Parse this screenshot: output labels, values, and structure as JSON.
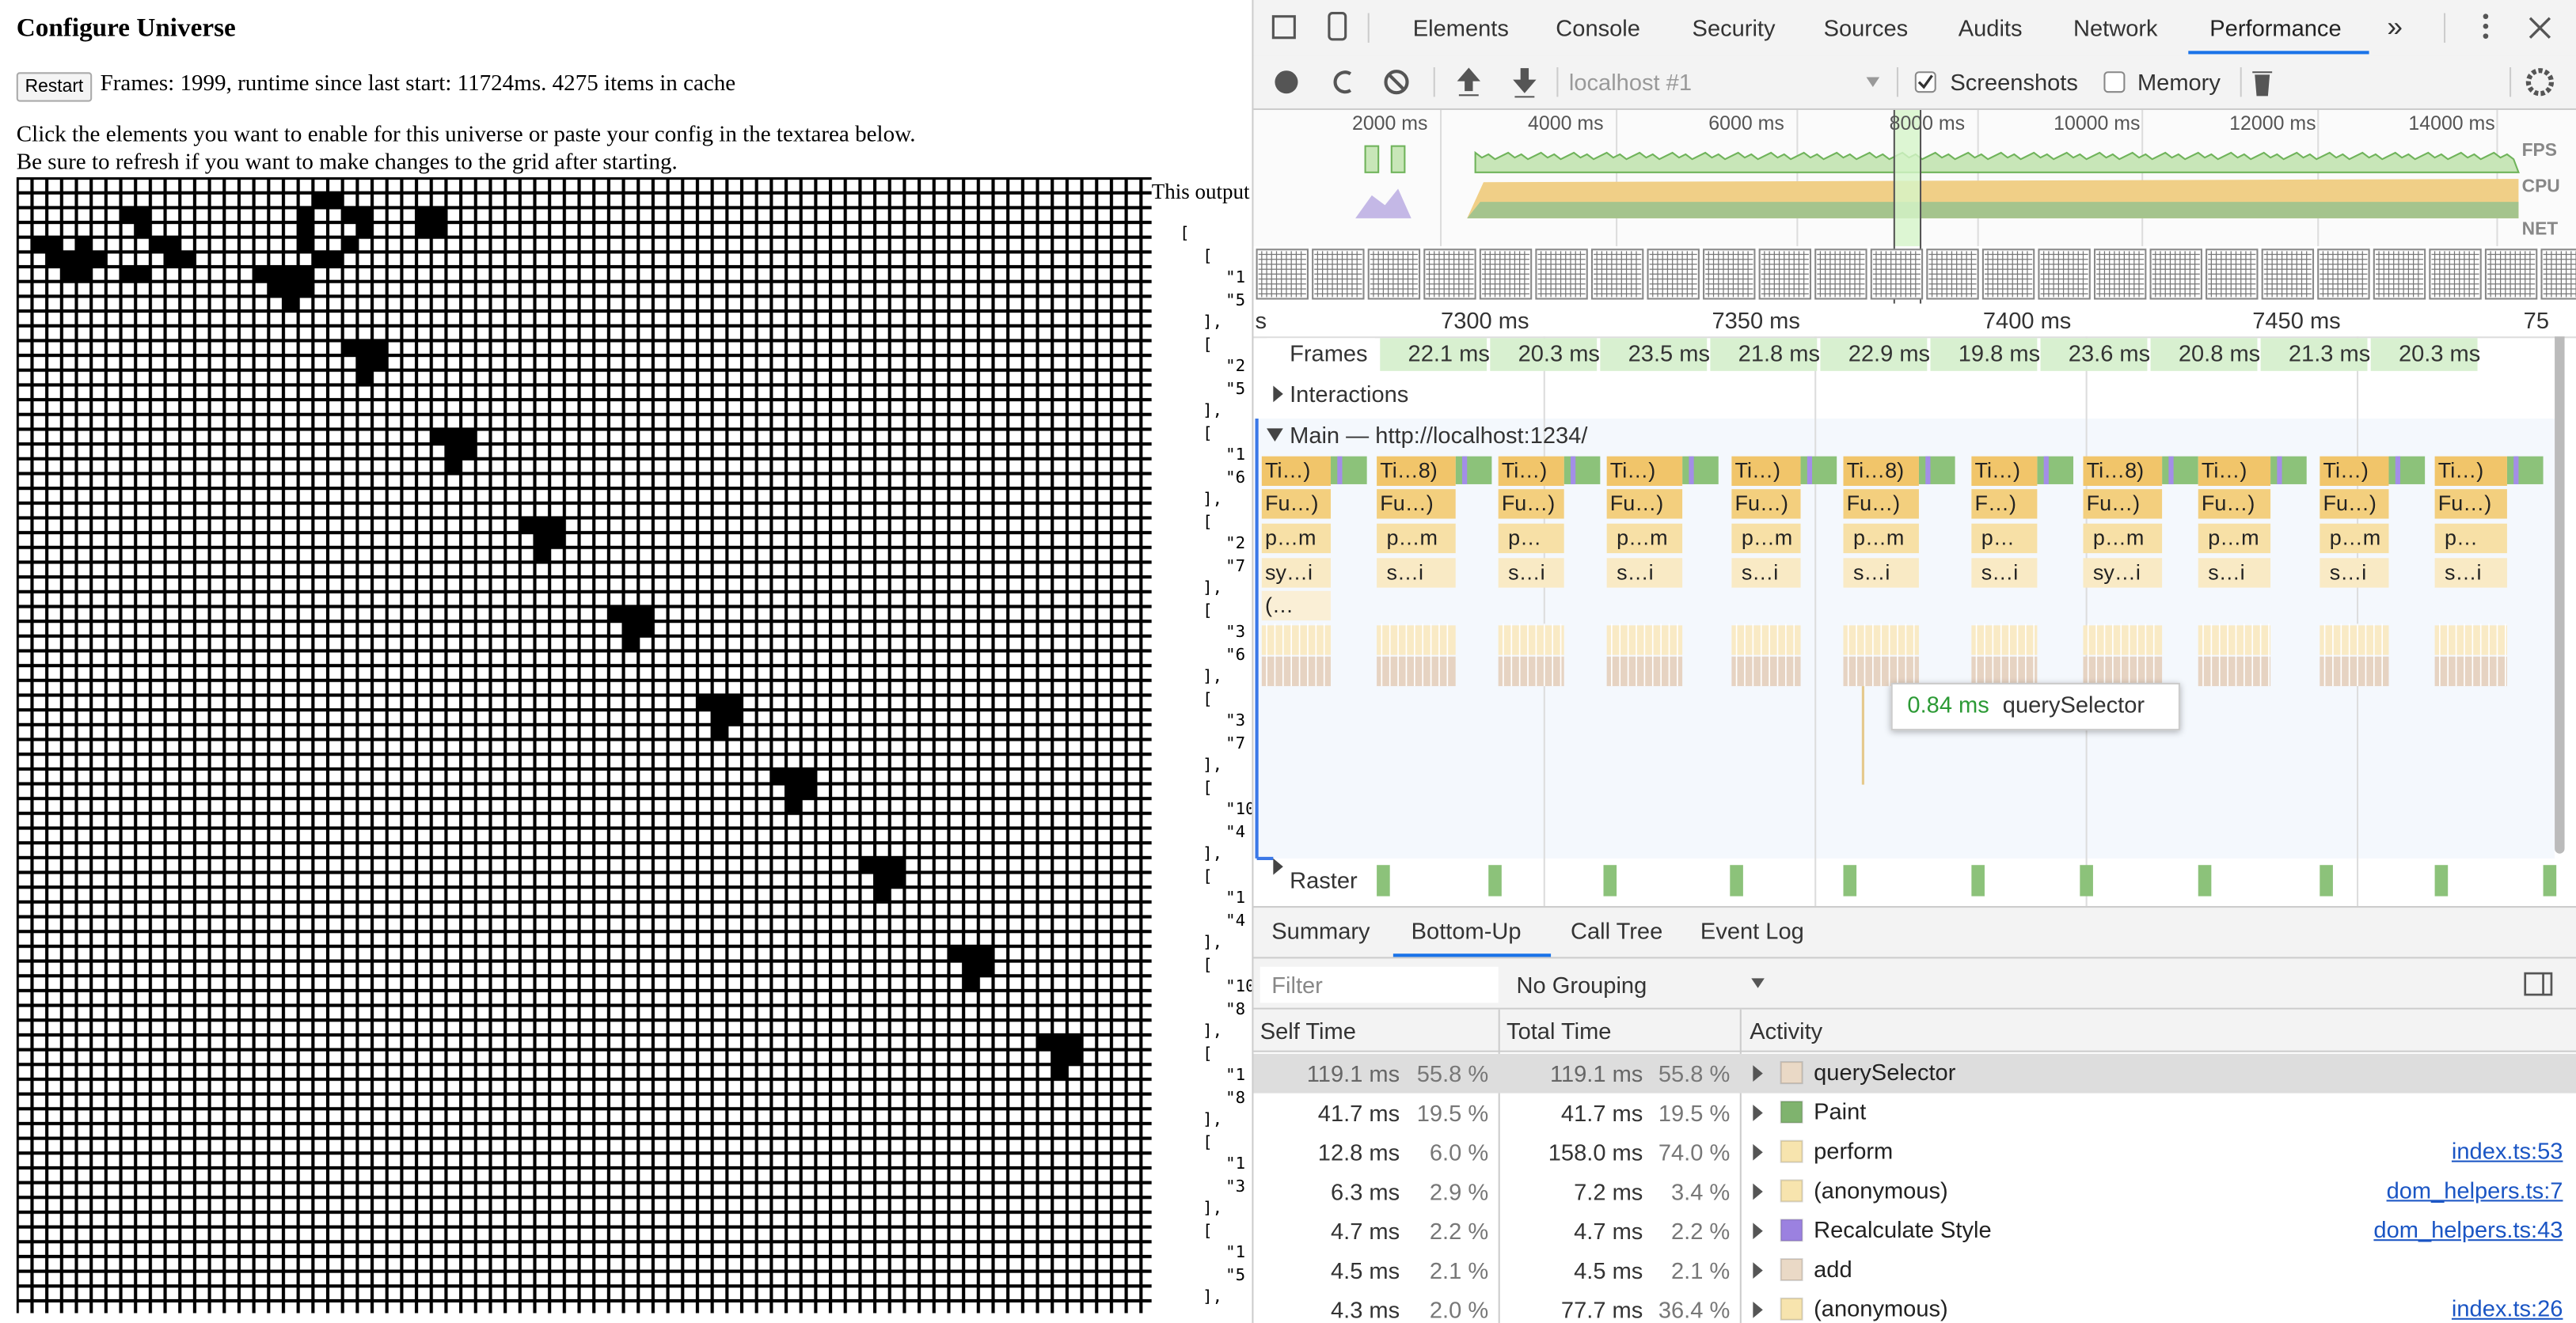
{
  "page": {
    "title": "Configure Universe",
    "restart": "Restart",
    "status": "Frames: 1999, runtime since last start: 11724ms. 4275 items in cache",
    "instructions": [
      "Click the elements you want to enable for this universe or paste your config in the textarea below.",
      "Be sure to refresh if you want to make changes to the grid after starting."
    ],
    "output_label": "This output",
    "output_lines": [
      "[",
      "[",
      "\"1",
      "\"5",
      "],",
      "[",
      "\"2",
      "\"5",
      "],",
      "[",
      "\"1",
      "\"6",
      "],",
      "[",
      "\"2",
      "\"7",
      "],",
      "[",
      "\"3",
      "\"6",
      "],",
      "[",
      "\"3",
      "\"7",
      "],",
      "[",
      "\"10",
      "\"4",
      "],",
      "[",
      "\"1",
      "\"4",
      "],",
      "[",
      "\"10",
      "\"8",
      "],",
      "[",
      "\"1",
      "\"8",
      "],",
      "[",
      "\"1",
      "\"3",
      "],",
      "[",
      "\"1",
      "\"5",
      "],"
    ]
  },
  "devtools": {
    "tabs": [
      "Elements",
      "Console",
      "Security",
      "Sources",
      "Audits",
      "Network",
      "Performance"
    ],
    "more": "»",
    "target": "localhost #1",
    "screenshots": "Screenshots",
    "memory": "Memory",
    "overview_ticks": [
      "2000 ms",
      "4000 ms",
      "6000 ms",
      "8000 ms",
      "10000 ms",
      "12000 ms",
      "14000 ms"
    ],
    "overview_labels": [
      "FPS",
      "CPU",
      "NET"
    ],
    "ruler": [
      "s",
      "7300 ms",
      "7350 ms",
      "7400 ms",
      "7450 ms",
      "75"
    ],
    "frames": "Frames",
    "frame_times": [
      "22.1 ms",
      "20.3 ms",
      "23.5 ms",
      "21.8 ms",
      "22.9 ms",
      "19.8 ms",
      "23.6 ms",
      "20.8 ms",
      "21.3 ms",
      "20.3 ms"
    ],
    "interactions": "Interactions",
    "main": "Main — http://localhost:1234/",
    "flame": [
      [
        "Ti…)",
        "Ti…8)",
        "Ti…)",
        "Ti…)",
        "Ti…)",
        "Ti…8)",
        "Ti…)",
        "Ti…8)",
        "Ti…)",
        "Ti…)",
        "Ti…)"
      ],
      [
        "Fu…)",
        "Fu…)",
        "Fu…)",
        "Fu…)",
        "Fu…)",
        "Fu…)",
        "F…)",
        "Fu…)",
        "Fu…)",
        "Fu…)",
        "Fu…)"
      ],
      [
        "p…m",
        "p…m",
        "p…",
        "p…m",
        "p…m",
        "p…m",
        "p…",
        "p…m",
        "p…m",
        "p…m",
        "p…"
      ],
      [
        "sy…i",
        "s…i",
        "s…i",
        "s…i",
        "s…i",
        "s…i",
        "s…i",
        "sy…i",
        "s…i",
        "s…i",
        "s…i"
      ],
      [
        "(…"
      ]
    ],
    "tooltip": {
      "time": "0.84 ms",
      "name": "querySelector"
    },
    "raster": "Raster",
    "bottom_tabs": [
      "Summary",
      "Bottom-Up",
      "Call Tree",
      "Event Log"
    ],
    "filter": "Filter",
    "grouping": "No Grouping",
    "columns": [
      "Self Time",
      "Total Time",
      "Activity"
    ],
    "rows": [
      {
        "self": "119.1 ms",
        "self_pct": "55.8 %",
        "total": "119.1 ms",
        "total_pct": "55.8 %",
        "activity": "querySelector",
        "color": "#ead9c6"
      },
      {
        "self": "41.7 ms",
        "self_pct": "19.5 %",
        "total": "41.7 ms",
        "total_pct": "19.5 %",
        "activity": "Paint",
        "color": "#7fb36e"
      },
      {
        "self": "12.8 ms",
        "self_pct": "6.0 %",
        "total": "158.0 ms",
        "total_pct": "74.0 %",
        "activity": "perform",
        "color": "#f7e4ae",
        "link": "index.ts:53"
      },
      {
        "self": "6.3 ms",
        "self_pct": "2.9 %",
        "total": "7.2 ms",
        "total_pct": "3.4 %",
        "activity": "(anonymous)",
        "color": "#f7e4ae",
        "link": "dom_helpers.ts:7"
      },
      {
        "self": "4.7 ms",
        "self_pct": "2.2 %",
        "total": "4.7 ms",
        "total_pct": "2.2 %",
        "activity": "Recalculate Style",
        "color": "#9b81e0",
        "link": "dom_helpers.ts:43"
      },
      {
        "self": "4.5 ms",
        "self_pct": "2.1 %",
        "total": "4.5 ms",
        "total_pct": "2.1 %",
        "activity": "add",
        "color": "#ead9c6"
      },
      {
        "self": "4.3 ms",
        "self_pct": "2.0 %",
        "total": "77.7 ms",
        "total_pct": "36.4 %",
        "activity": "(anonymous)",
        "color": "#f7e4ae",
        "link": "index.ts:26"
      }
    ]
  }
}
